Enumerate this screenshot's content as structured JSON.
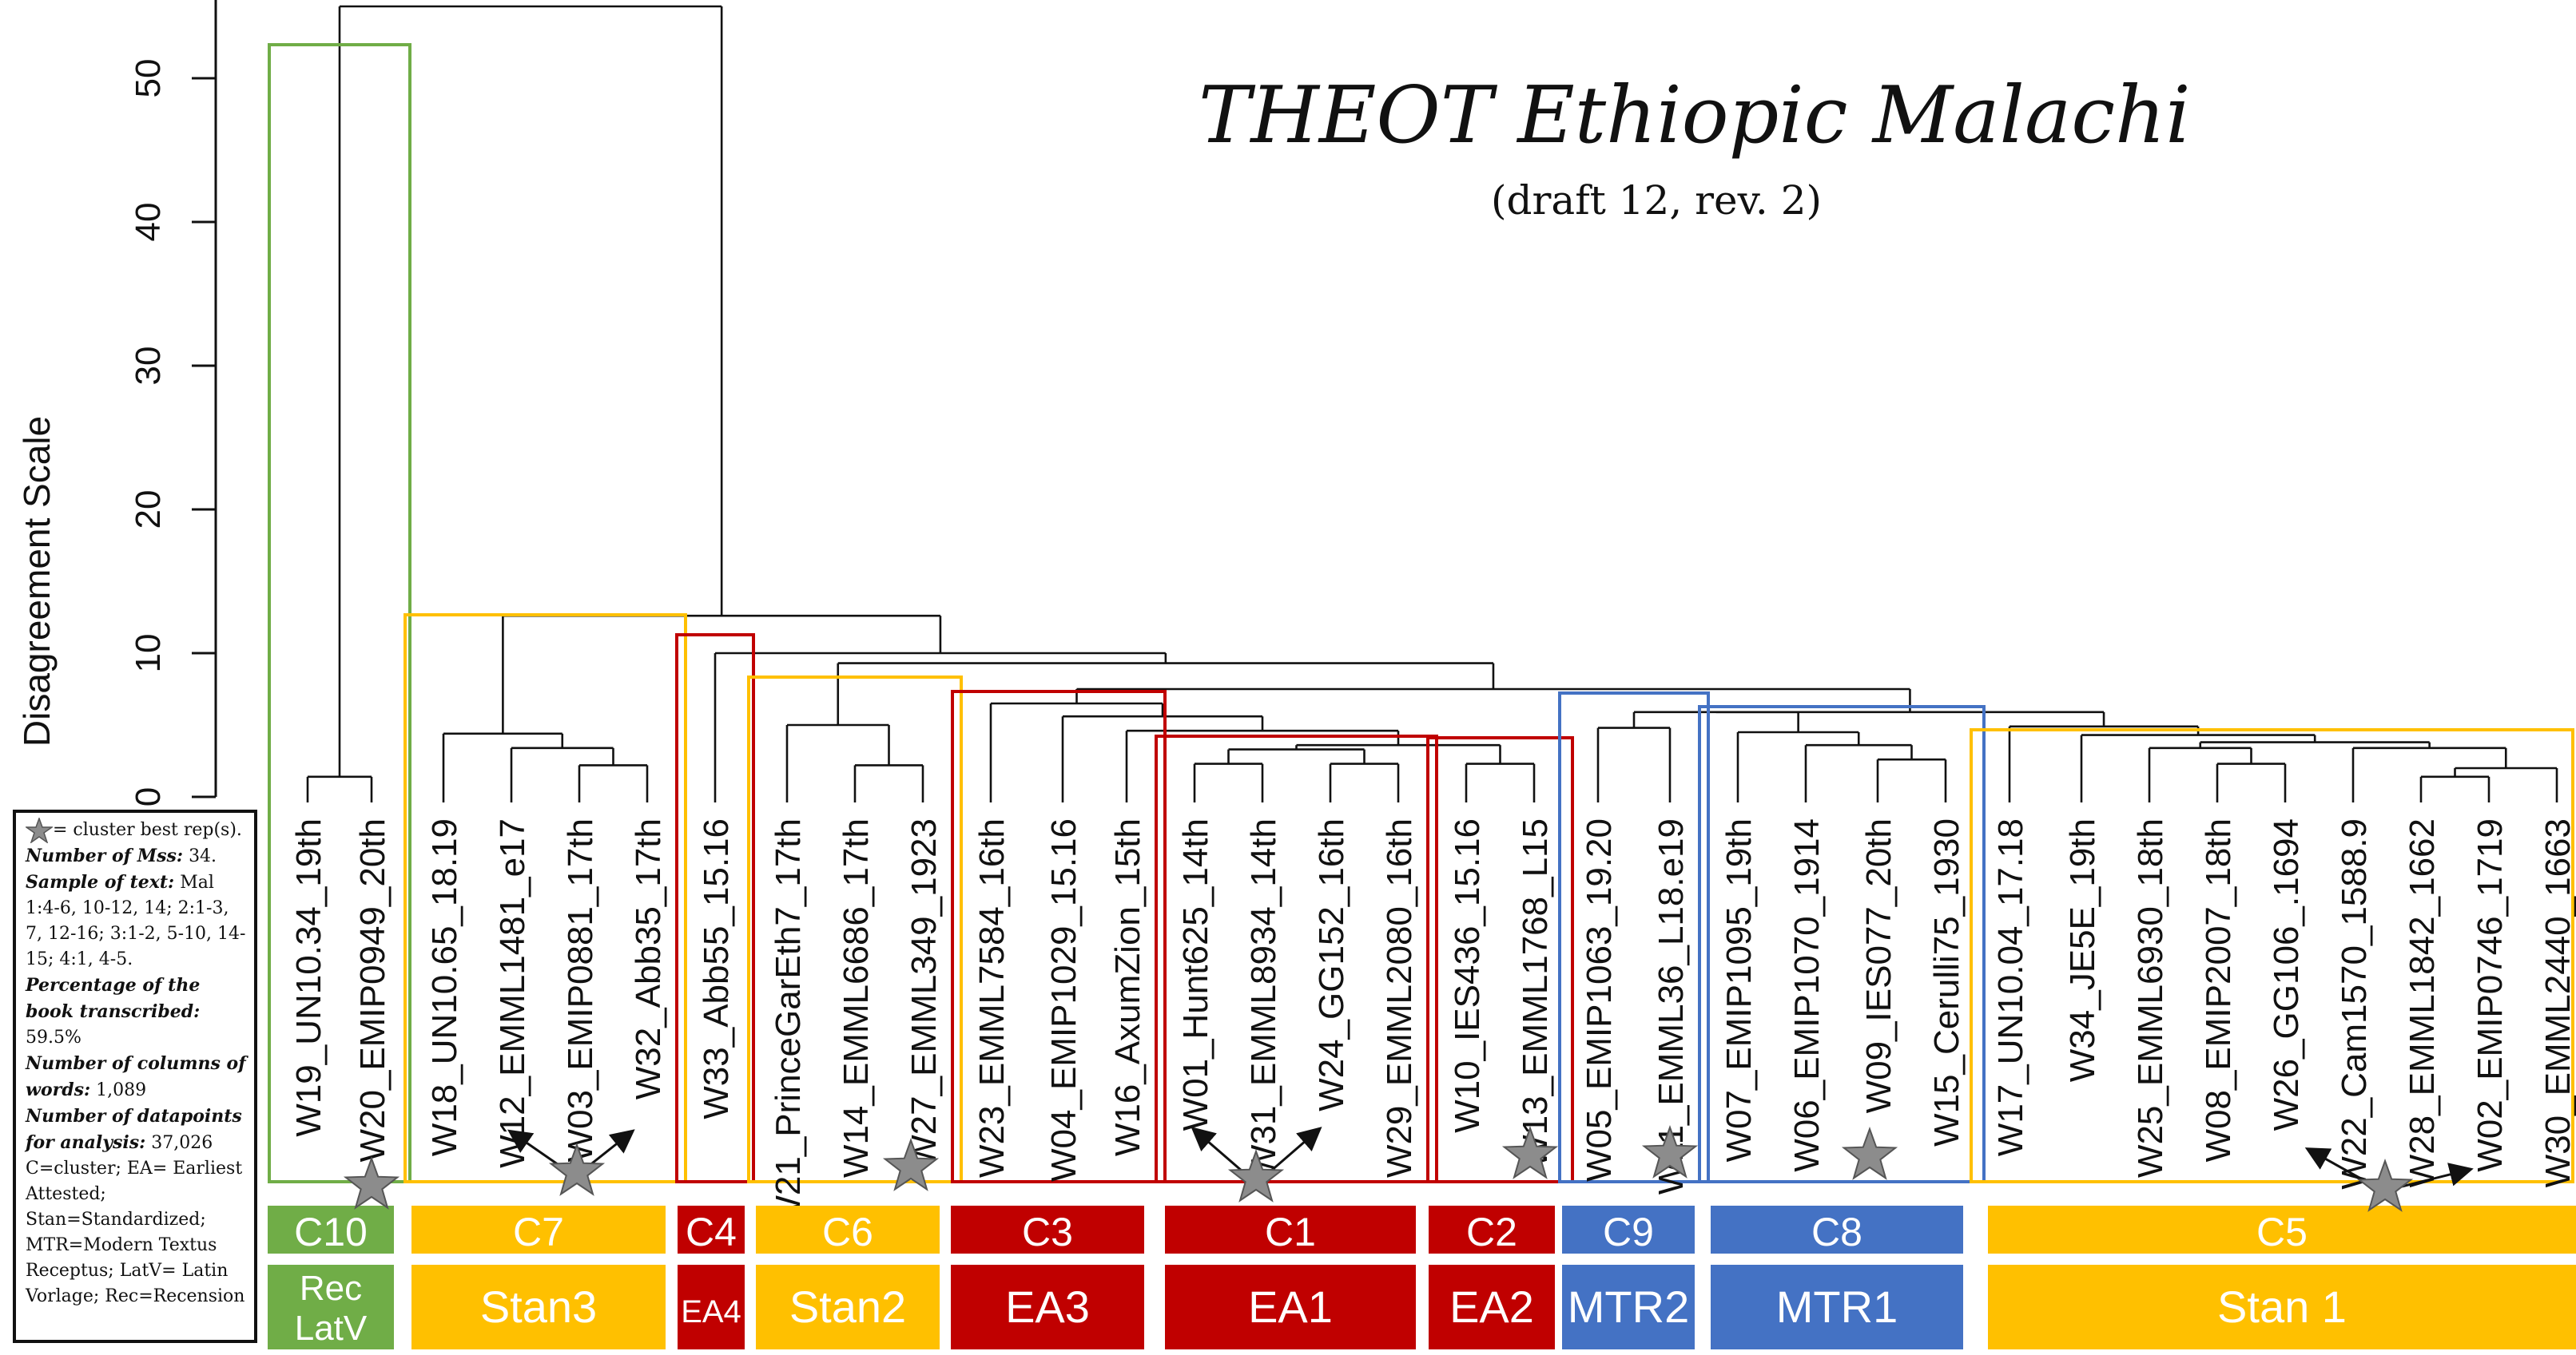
{
  "title": "THEOT Ethiopic Malachi",
  "subtitle": "(draft 12, rev. 2)",
  "y_axis": {
    "label": "Disagreement Scale",
    "ticks": [
      "0",
      "10",
      "20",
      "30",
      "40",
      "50"
    ]
  },
  "leaves": [
    "W19_UN10.34_19th",
    "W20_EMIP0949_20th",
    "W18_UN10.65_18.19",
    "W12_EMML1481_e17",
    "W03_EMIP0881_17th",
    "W32_Abb35_17th",
    "W33_Abb55_15.16",
    "W21_PrinceGarEth7_17th",
    "W14_EMML6686_17th",
    "W27_EMML349_1923",
    "W23_EMML7584_16th",
    "W04_EMIP1029_15.16",
    "W16_AxumZion_15th",
    "W01_Hunt625_14th",
    "W31_EMML8934_14th",
    "W24_GG152_16th",
    "W29_EMML2080_16th",
    "W10_IES436_15.16",
    "W13_EMML1768_L15",
    "W05_EMIP1063_19.20",
    "W11_EMML36_L18.e19",
    "W07_EMIP1095_19th",
    "W06_EMIP1070_1914",
    "W09_IES077_20th",
    "W15_Cerulli75_1930",
    "W17_UN10.04_17.18",
    "W34_JE5E_19th",
    "W25_EMML6930_18th",
    "W08_EMIP2007_18th",
    "W26_GG106_.1694",
    "W22_Cam1570_1588.9",
    "W28_EMML1842_1662",
    "W02_EMIP0746_1719",
    "W30_EMML2440_1663"
  ],
  "clusters": [
    {
      "cluster": "C10",
      "group_lines": [
        "Rec",
        "LatV"
      ],
      "color": "#70ad47"
    },
    {
      "cluster": "C7",
      "group_lines": [
        "Stan3"
      ],
      "color": "#ffc000"
    },
    {
      "cluster": "C4",
      "group_lines": [
        "EA4"
      ],
      "color": "#c00000"
    },
    {
      "cluster": "C6",
      "group_lines": [
        "Stan2"
      ],
      "color": "#ffc000"
    },
    {
      "cluster": "C3",
      "group_lines": [
        "EA3"
      ],
      "color": "#c00000"
    },
    {
      "cluster": "C1",
      "group_lines": [
        "EA1"
      ],
      "color": "#c00000"
    },
    {
      "cluster": "C2",
      "group_lines": [
        "EA2"
      ],
      "color": "#c00000"
    },
    {
      "cluster": "C9",
      "group_lines": [
        "MTR2"
      ],
      "color": "#4472c4"
    },
    {
      "cluster": "C8",
      "group_lines": [
        "MTR1"
      ],
      "color": "#4472c4"
    },
    {
      "cluster": "C5",
      "group_lines": [
        "Stan 1"
      ],
      "color": "#ffc000"
    }
  ],
  "legend": {
    "star_text": "= cluster best rep(s).",
    "mss_label": "Number of Mss:",
    "mss_value": "34.",
    "sample_label": "Sample  of text:",
    "sample_value": "Mal 1:4-6, 10-12, 14; 2:1-3, 7, 12-16; 3:1-2, 5-10, 14-15; 4:1, 4-5.",
    "pct_label": "Percentage of the book transcribed:",
    "pct_value": "59.5%",
    "cols_label": "Number of columns of words:",
    "cols_value": "1,089",
    "dp_label": "Number of datapoints for analysis:",
    "dp_value": "37,026",
    "abbrev": "C=cluster; EA= Earliest Attested; Stan=Standardized; MTR=Modern Textus Receptus; LatV= Latin Vorlage; Rec=Recension"
  }
}
